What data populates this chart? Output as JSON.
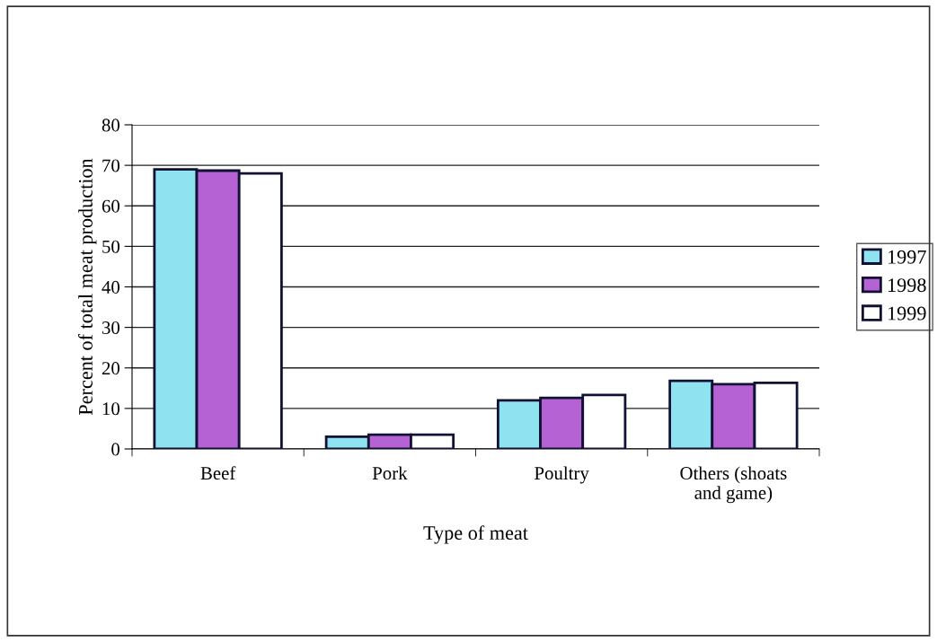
{
  "chart_data": {
    "type": "bar",
    "xlabel": "Type of meat",
    "ylabel": "Percent of total meat production",
    "categories": [
      "Beef",
      "Pork",
      "Poultry",
      "Others (shoats\nand game)"
    ],
    "series": [
      {
        "name": "1997",
        "color": "#8fe3f0",
        "values": [
          69,
          3,
          12,
          16.8
        ]
      },
      {
        "name": "1998",
        "color": "#b462d4",
        "values": [
          68.7,
          3.5,
          12.6,
          16
        ]
      },
      {
        "name": "1999",
        "color": "#ffffff",
        "values": [
          68,
          3.5,
          13.3,
          16.3
        ]
      }
    ],
    "ylim": [
      0,
      80
    ],
    "yticks": [
      0,
      10,
      20,
      30,
      40,
      50,
      60,
      70,
      80
    ],
    "grid": "y",
    "legend": "right"
  }
}
